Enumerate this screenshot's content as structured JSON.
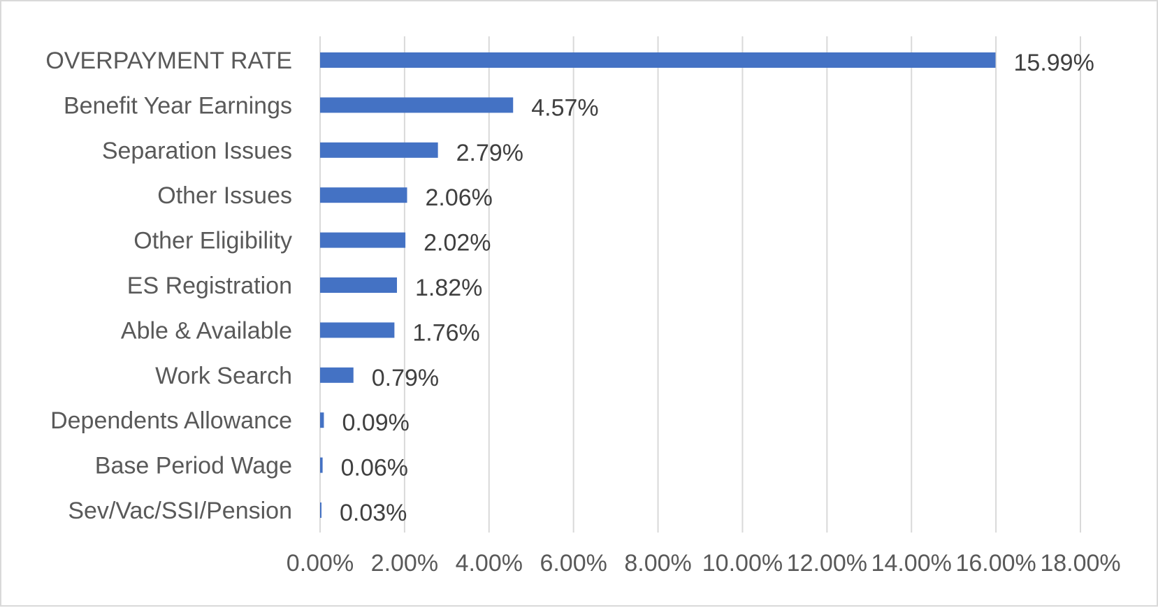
{
  "chart_data": {
    "type": "bar",
    "orientation": "horizontal",
    "categories": [
      "OVERPAYMENT RATE",
      "Benefit Year Earnings",
      "Separation Issues",
      "Other Issues",
      "Other Eligibility",
      "ES Registration",
      "Able & Available",
      "Work Search",
      "Dependents Allowance",
      "Base Period Wage",
      "Sev/Vac/SSI/Pension"
    ],
    "values": [
      15.99,
      4.57,
      2.79,
      2.06,
      2.02,
      1.82,
      1.76,
      0.79,
      0.09,
      0.06,
      0.03
    ],
    "data_labels": [
      "15.99%",
      "4.57%",
      "2.79%",
      "2.06%",
      "2.02%",
      "1.82%",
      "1.76%",
      "0.79%",
      "0.09%",
      "0.06%",
      "0.03%"
    ],
    "x_ticks": [
      0,
      2,
      4,
      6,
      8,
      10,
      12,
      14,
      16,
      18
    ],
    "x_tick_labels": [
      "0.00%",
      "2.00%",
      "4.00%",
      "6.00%",
      "8.00%",
      "10.00%",
      "12.00%",
      "14.00%",
      "16.00%",
      "18.00%"
    ],
    "xlim": [
      0,
      18
    ],
    "unit": "%",
    "title": "",
    "xlabel": "",
    "ylabel": "",
    "grid": "vertical",
    "legend": "none",
    "bar_color": "#4472C4",
    "grid_color": "#D9D9D9",
    "text_color": "#595959",
    "border_color": "#D9D9D9"
  }
}
